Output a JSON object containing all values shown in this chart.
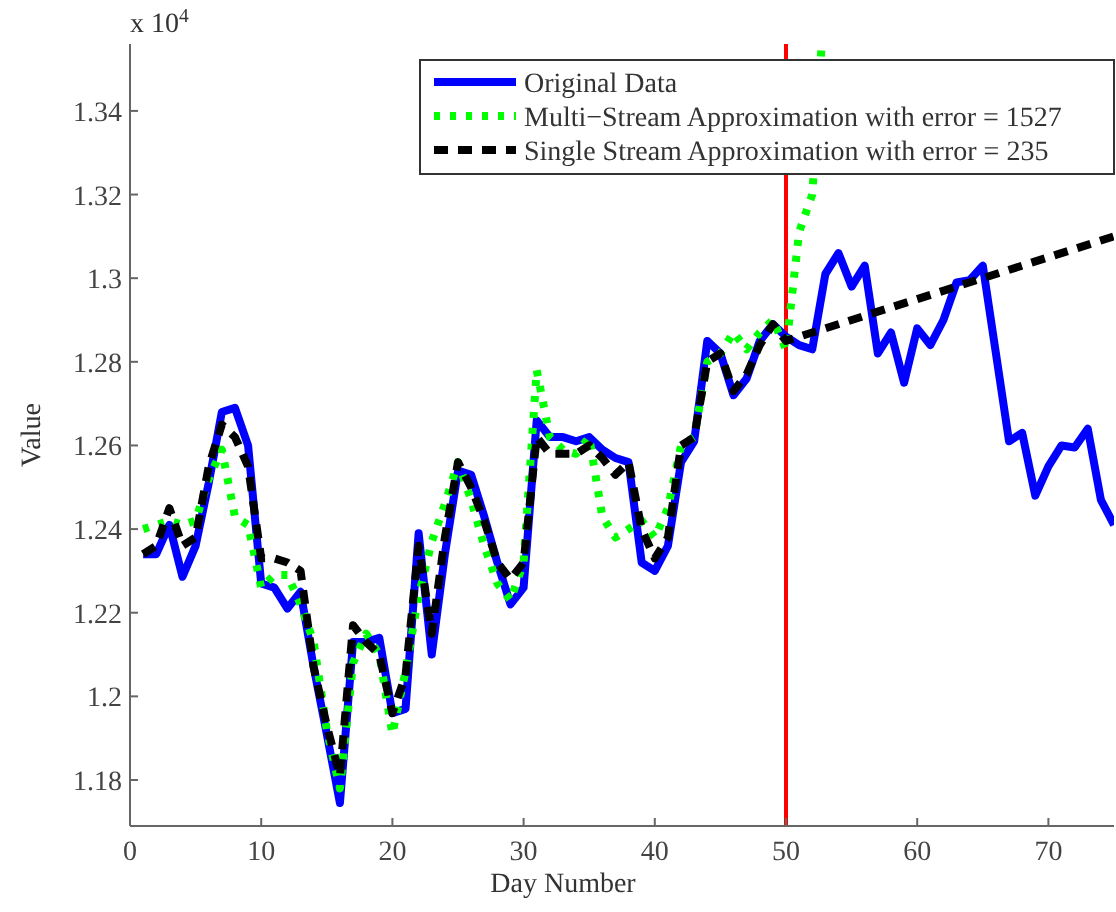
{
  "chart_data": {
    "type": "line",
    "xlabel": "Day Number",
    "ylabel": "Value",
    "annotations": [
      "x 10$^{4}$"
    ],
    "x": [
      1,
      2,
      3,
      4,
      5,
      6,
      7,
      8,
      9,
      10,
      11,
      12,
      13,
      14,
      15,
      16,
      17,
      18,
      19,
      20,
      21,
      22,
      23,
      24,
      25,
      26,
      27,
      28,
      29,
      30,
      31,
      32,
      33,
      34,
      35,
      36,
      37,
      38,
      39,
      40,
      41,
      42,
      43,
      44,
      45,
      46,
      47,
      48,
      49,
      50,
      51,
      52,
      53,
      54,
      55,
      56,
      57,
      58,
      59,
      60,
      61,
      62,
      63,
      64,
      65,
      66,
      67,
      68,
      69,
      70,
      71,
      72,
      73,
      74,
      75
    ],
    "xlim": [
      0,
      75
    ],
    "xticks": [
      0,
      10,
      20,
      30,
      40,
      50,
      60,
      70
    ],
    "ylim": [
      1.169,
      1.356
    ],
    "yticks": [
      1.18,
      1.2,
      1.22,
      1.24,
      1.26,
      1.28,
      1.3,
      1.32,
      1.34
    ],
    "legend": "top right",
    "line_style": "solid",
    "series": [
      {
        "name": "Original Data",
        "color": "#0000ff",
        "values": [
          1.234,
          1.234,
          1.241,
          1.2286,
          1.236,
          1.251,
          1.268,
          1.269,
          1.26,
          1.227,
          1.226,
          1.221,
          1.225,
          1.207,
          1.191,
          1.1745,
          1.213,
          1.213,
          1.214,
          1.196,
          1.197,
          1.239,
          1.21,
          1.234,
          1.254,
          1.253,
          1.243,
          1.232,
          1.222,
          1.226,
          1.266,
          1.262,
          1.262,
          1.261,
          1.262,
          1.259,
          1.257,
          1.256,
          1.232,
          1.23,
          1.236,
          1.256,
          1.261,
          1.285,
          1.282,
          1.272,
          1.276,
          1.285,
          1.289,
          1.286,
          1.284,
          1.283,
          1.301,
          1.306,
          1.298,
          1.303,
          1.282,
          1.287,
          1.275,
          1.288,
          1.284,
          1.29,
          1.299,
          1.2995,
          1.303,
          1.282,
          1.261,
          1.263,
          1.248,
          1.255,
          1.26,
          1.2595,
          1.264,
          1.247,
          1.241
        ]
      },
      {
        "name": "Multi−Stream Approximation with error = 1527",
        "color": "#00ff00",
        "line_style": "dotted",
        "x": [
          1,
          2,
          3,
          4,
          5,
          6,
          7,
          8,
          9,
          10,
          11,
          12,
          13,
          14,
          15,
          16,
          17,
          18,
          19,
          20,
          21,
          22,
          23,
          24,
          25,
          26,
          27,
          28,
          29,
          30,
          31,
          32,
          33,
          34,
          35,
          36,
          37,
          38,
          39,
          40,
          41,
          42,
          43,
          44,
          45,
          46,
          47,
          48,
          49,
          50,
          51,
          52,
          52.7
        ],
        "values": [
          1.24,
          1.241,
          1.242,
          1.241,
          1.242,
          1.252,
          1.259,
          1.243,
          1.241,
          1.226,
          1.229,
          1.229,
          1.222,
          1.213,
          1.192,
          1.178,
          1.208,
          1.215,
          1.21,
          1.191,
          1.206,
          1.224,
          1.237,
          1.246,
          1.256,
          1.247,
          1.236,
          1.227,
          1.223,
          1.232,
          1.278,
          1.262,
          1.259,
          1.258,
          1.262,
          1.243,
          1.238,
          1.24,
          1.242,
          1.238,
          1.245,
          1.26,
          1.262,
          1.28,
          1.282,
          1.287,
          1.283,
          1.287,
          1.29,
          1.283,
          1.311,
          1.32,
          1.355
        ]
      },
      {
        "name": "Single Stream Approximation with error = 235",
        "color": "#000000",
        "line_style": "dashed",
        "x": [
          1,
          2,
          3,
          4,
          5,
          6,
          7,
          8,
          9,
          10,
          11,
          12,
          13,
          14,
          15,
          16,
          17,
          18,
          19,
          20,
          21,
          22,
          23,
          24,
          25,
          26,
          27,
          28,
          29,
          30,
          31,
          32,
          33,
          34,
          35,
          36,
          37,
          38,
          39,
          40,
          41,
          42,
          43,
          44,
          45,
          46,
          47,
          48,
          49,
          50,
          75
        ],
        "values": [
          1.234,
          1.236,
          1.245,
          1.236,
          1.238,
          1.255,
          1.265,
          1.262,
          1.255,
          1.233,
          1.233,
          1.232,
          1.23,
          1.207,
          1.193,
          1.181,
          1.217,
          1.213,
          1.21,
          1.196,
          1.205,
          1.236,
          1.215,
          1.238,
          1.256,
          1.25,
          1.242,
          1.232,
          1.228,
          1.232,
          1.262,
          1.258,
          1.258,
          1.258,
          1.26,
          1.257,
          1.253,
          1.256,
          1.24,
          1.233,
          1.238,
          1.26,
          1.262,
          1.28,
          1.282,
          1.273,
          1.277,
          1.284,
          1.289,
          1.285,
          1.31
        ]
      }
    ],
    "ref_lines": [
      {
        "axis": "x",
        "value": 50,
        "color": "#ff0000"
      }
    ]
  }
}
